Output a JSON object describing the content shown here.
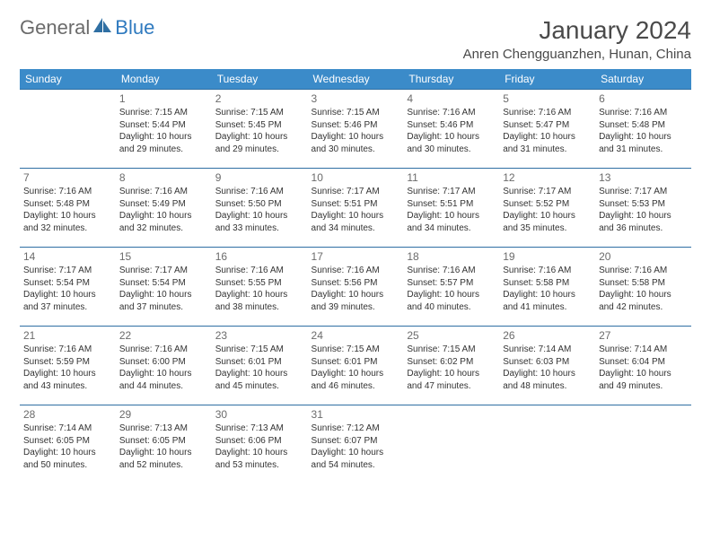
{
  "logo": {
    "part1": "General",
    "part2": "Blue"
  },
  "title": "January 2024",
  "location": "Anren Chengguanzhen, Hunan, China",
  "colors": {
    "header_bg": "#3b8bc9",
    "header_text": "#ffffff",
    "row_border": "#2f6fa3",
    "text": "#333333",
    "daynum": "#6b6b6b",
    "logo_gray": "#6b6b6b",
    "logo_blue": "#2f7abf"
  },
  "daysOfWeek": [
    "Sunday",
    "Monday",
    "Tuesday",
    "Wednesday",
    "Thursday",
    "Friday",
    "Saturday"
  ],
  "weeks": [
    [
      null,
      {
        "n": "1",
        "sr": "7:15 AM",
        "ss": "5:44 PM",
        "dl": "10 hours and 29 minutes."
      },
      {
        "n": "2",
        "sr": "7:15 AM",
        "ss": "5:45 PM",
        "dl": "10 hours and 29 minutes."
      },
      {
        "n": "3",
        "sr": "7:15 AM",
        "ss": "5:46 PM",
        "dl": "10 hours and 30 minutes."
      },
      {
        "n": "4",
        "sr": "7:16 AM",
        "ss": "5:46 PM",
        "dl": "10 hours and 30 minutes."
      },
      {
        "n": "5",
        "sr": "7:16 AM",
        "ss": "5:47 PM",
        "dl": "10 hours and 31 minutes."
      },
      {
        "n": "6",
        "sr": "7:16 AM",
        "ss": "5:48 PM",
        "dl": "10 hours and 31 minutes."
      }
    ],
    [
      {
        "n": "7",
        "sr": "7:16 AM",
        "ss": "5:48 PM",
        "dl": "10 hours and 32 minutes."
      },
      {
        "n": "8",
        "sr": "7:16 AM",
        "ss": "5:49 PM",
        "dl": "10 hours and 32 minutes."
      },
      {
        "n": "9",
        "sr": "7:16 AM",
        "ss": "5:50 PM",
        "dl": "10 hours and 33 minutes."
      },
      {
        "n": "10",
        "sr": "7:17 AM",
        "ss": "5:51 PM",
        "dl": "10 hours and 34 minutes."
      },
      {
        "n": "11",
        "sr": "7:17 AM",
        "ss": "5:51 PM",
        "dl": "10 hours and 34 minutes."
      },
      {
        "n": "12",
        "sr": "7:17 AM",
        "ss": "5:52 PM",
        "dl": "10 hours and 35 minutes."
      },
      {
        "n": "13",
        "sr": "7:17 AM",
        "ss": "5:53 PM",
        "dl": "10 hours and 36 minutes."
      }
    ],
    [
      {
        "n": "14",
        "sr": "7:17 AM",
        "ss": "5:54 PM",
        "dl": "10 hours and 37 minutes."
      },
      {
        "n": "15",
        "sr": "7:17 AM",
        "ss": "5:54 PM",
        "dl": "10 hours and 37 minutes."
      },
      {
        "n": "16",
        "sr": "7:16 AM",
        "ss": "5:55 PM",
        "dl": "10 hours and 38 minutes."
      },
      {
        "n": "17",
        "sr": "7:16 AM",
        "ss": "5:56 PM",
        "dl": "10 hours and 39 minutes."
      },
      {
        "n": "18",
        "sr": "7:16 AM",
        "ss": "5:57 PM",
        "dl": "10 hours and 40 minutes."
      },
      {
        "n": "19",
        "sr": "7:16 AM",
        "ss": "5:58 PM",
        "dl": "10 hours and 41 minutes."
      },
      {
        "n": "20",
        "sr": "7:16 AM",
        "ss": "5:58 PM",
        "dl": "10 hours and 42 minutes."
      }
    ],
    [
      {
        "n": "21",
        "sr": "7:16 AM",
        "ss": "5:59 PM",
        "dl": "10 hours and 43 minutes."
      },
      {
        "n": "22",
        "sr": "7:16 AM",
        "ss": "6:00 PM",
        "dl": "10 hours and 44 minutes."
      },
      {
        "n": "23",
        "sr": "7:15 AM",
        "ss": "6:01 PM",
        "dl": "10 hours and 45 minutes."
      },
      {
        "n": "24",
        "sr": "7:15 AM",
        "ss": "6:01 PM",
        "dl": "10 hours and 46 minutes."
      },
      {
        "n": "25",
        "sr": "7:15 AM",
        "ss": "6:02 PM",
        "dl": "10 hours and 47 minutes."
      },
      {
        "n": "26",
        "sr": "7:14 AM",
        "ss": "6:03 PM",
        "dl": "10 hours and 48 minutes."
      },
      {
        "n": "27",
        "sr": "7:14 AM",
        "ss": "6:04 PM",
        "dl": "10 hours and 49 minutes."
      }
    ],
    [
      {
        "n": "28",
        "sr": "7:14 AM",
        "ss": "6:05 PM",
        "dl": "10 hours and 50 minutes."
      },
      {
        "n": "29",
        "sr": "7:13 AM",
        "ss": "6:05 PM",
        "dl": "10 hours and 52 minutes."
      },
      {
        "n": "30",
        "sr": "7:13 AM",
        "ss": "6:06 PM",
        "dl": "10 hours and 53 minutes."
      },
      {
        "n": "31",
        "sr": "7:12 AM",
        "ss": "6:07 PM",
        "dl": "10 hours and 54 minutes."
      },
      null,
      null,
      null
    ]
  ],
  "labels": {
    "sunrise": "Sunrise:",
    "sunset": "Sunset:",
    "daylight": "Daylight:"
  }
}
